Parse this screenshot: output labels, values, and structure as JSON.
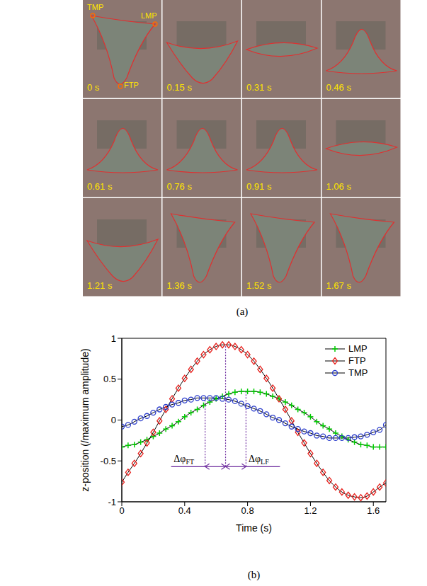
{
  "panel_a": {
    "label": "(a)",
    "frames": [
      "0 s",
      "0.15 s",
      "0.31 s",
      "0.46 s",
      "0.61 s",
      "0.76 s",
      "0.91 s",
      "1.06 s",
      "1.21 s",
      "1.36 s",
      "1.52 s",
      "1.67 s"
    ],
    "points": [
      "TMP",
      "LMP",
      "FTP"
    ]
  },
  "panel_b_label": "(b)",
  "chart_data": {
    "type": "line",
    "x_label": "Time (s)",
    "y_label": "z-position (/maximum amplitude)",
    "xlim": [
      0,
      1.68
    ],
    "xticks": [
      0,
      0.4,
      0.8,
      1.2,
      1.6
    ],
    "ylim": [
      -1,
      1
    ],
    "yticks": [
      -1,
      -0.5,
      0,
      0.5,
      1
    ],
    "grid": false,
    "legend": "upper right",
    "x": [
      0,
      0.04,
      0.08,
      0.12,
      0.16,
      0.2,
      0.24,
      0.28,
      0.32,
      0.36,
      0.4,
      0.44,
      0.48,
      0.52,
      0.56,
      0.6,
      0.64,
      0.68,
      0.72,
      0.76,
      0.8,
      0.84,
      0.88,
      0.92,
      0.96,
      1.0,
      1.04,
      1.08,
      1.12,
      1.16,
      1.2,
      1.24,
      1.28,
      1.32,
      1.36,
      1.4,
      1.44,
      1.48,
      1.52,
      1.56,
      1.6,
      1.64,
      1.68
    ],
    "series": [
      {
        "name": "LMP",
        "color": "#00cc00",
        "marker": "plus",
        "line_style": "solid",
        "values": [
          -0.33,
          -0.31,
          -0.3,
          -0.27,
          -0.24,
          -0.2,
          -0.16,
          -0.11,
          -0.07,
          -0.02,
          0.04,
          0.09,
          0.13,
          0.18,
          0.22,
          0.26,
          0.29,
          0.32,
          0.34,
          0.35,
          0.35,
          0.35,
          0.34,
          0.32,
          0.29,
          0.26,
          0.22,
          0.18,
          0.13,
          0.09,
          0.04,
          -0.02,
          -0.07,
          -0.11,
          -0.16,
          -0.2,
          -0.24,
          -0.27,
          -0.3,
          -0.31,
          -0.33,
          -0.33,
          -0.33
        ]
      },
      {
        "name": "FTP",
        "color": "#e8201c",
        "marker": "diamond",
        "line_style": "solid",
        "values": [
          -0.76,
          -0.64,
          -0.53,
          -0.41,
          -0.28,
          -0.15,
          -0.01,
          0.13,
          0.26,
          0.39,
          0.51,
          0.62,
          0.72,
          0.8,
          0.86,
          0.9,
          0.92,
          0.92,
          0.9,
          0.86,
          0.8,
          0.72,
          0.62,
          0.51,
          0.39,
          0.26,
          0.13,
          -0.01,
          -0.15,
          -0.28,
          -0.41,
          -0.53,
          -0.64,
          -0.74,
          -0.82,
          -0.88,
          -0.92,
          -0.94,
          -0.95,
          -0.93,
          -0.88,
          -0.82,
          -0.77
        ]
      },
      {
        "name": "TMP",
        "color": "#2a3ccc",
        "marker": "circle",
        "line_style": "solid",
        "values": [
          -0.08,
          -0.06,
          -0.02,
          0.02,
          0.05,
          0.09,
          0.13,
          0.16,
          0.19,
          0.21,
          0.24,
          0.25,
          0.27,
          0.27,
          0.27,
          0.27,
          0.26,
          0.25,
          0.23,
          0.2,
          0.17,
          0.14,
          0.11,
          0.07,
          0.03,
          0.0,
          -0.04,
          -0.08,
          -0.11,
          -0.14,
          -0.16,
          -0.19,
          -0.2,
          -0.22,
          -0.22,
          -0.22,
          -0.22,
          -0.21,
          -0.2,
          -0.18,
          -0.15,
          -0.12,
          -0.06
        ]
      }
    ],
    "phase_lines": [
      {
        "x": 0.53,
        "y": 0.27
      },
      {
        "x": 0.66,
        "y": 0.92
      },
      {
        "x": 0.79,
        "y": 0.35
      }
    ],
    "arrow_y": -0.57,
    "annotations": [
      {
        "text": "Δφ",
        "sub": "FT",
        "x1": 0.53,
        "x2": 0.66,
        "side": "left"
      },
      {
        "text": "Δφ",
        "sub": "LF",
        "x1": 0.66,
        "x2": 0.79,
        "side": "right"
      }
    ]
  }
}
